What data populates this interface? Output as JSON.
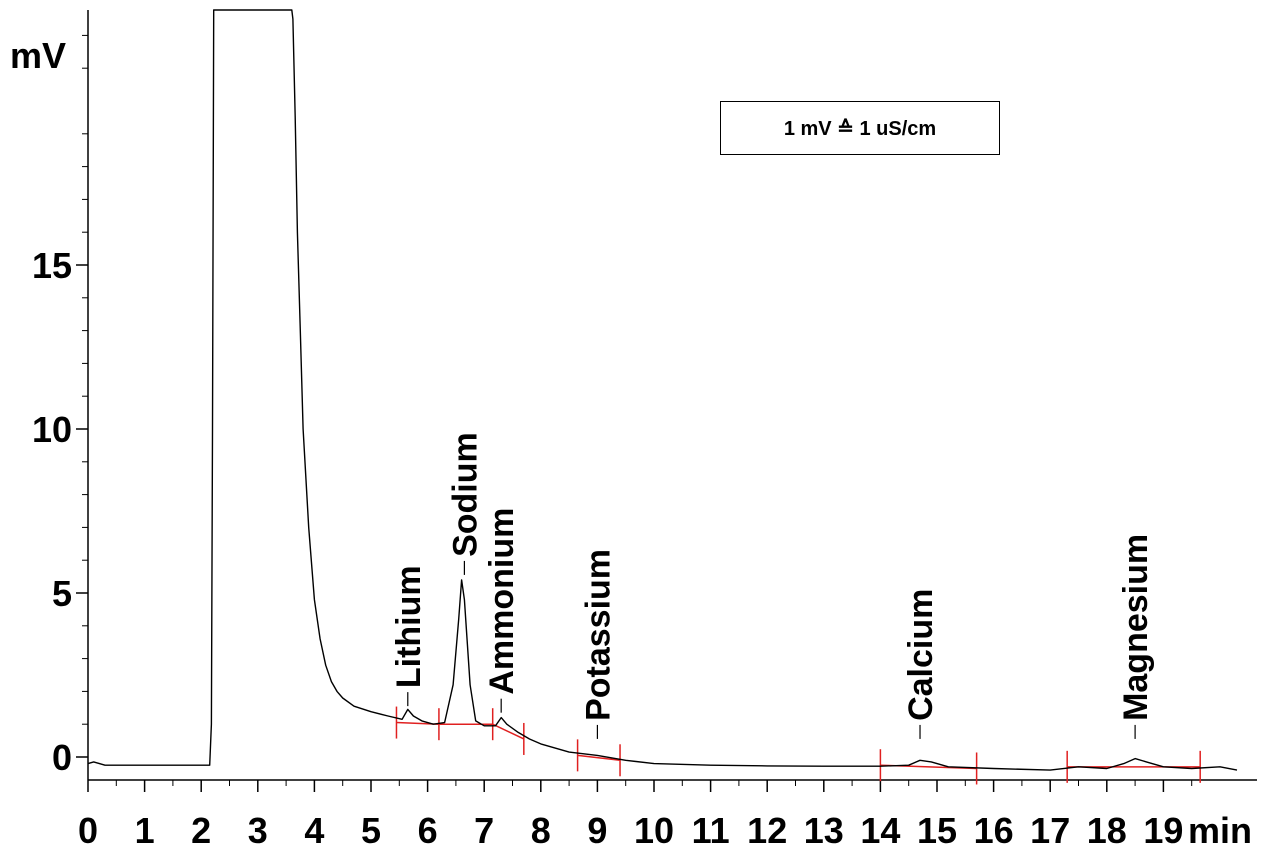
{
  "chart_data": {
    "type": "line",
    "ylabel": "mV",
    "xlabel": "min",
    "xlim": [
      0,
      20.5
    ],
    "ylim": [
      -0.8,
      23
    ],
    "x_ticks": [
      0,
      1,
      2,
      3,
      4,
      5,
      6,
      7,
      8,
      9,
      10,
      11,
      12,
      13,
      14,
      15,
      16,
      17,
      18,
      19
    ],
    "y_ticks": [
      0,
      5,
      10,
      15
    ],
    "annotation": "1 mV ≙ 1 uS/cm",
    "series": [
      {
        "color": "#000000",
        "x": [
          0,
          0.1,
          0.3,
          2.15,
          2.18,
          2.2,
          2.22,
          2.24,
          2.26,
          2.28,
          3.6,
          3.62,
          3.66,
          3.7,
          3.75,
          3.8,
          3.9,
          4.0,
          4.1,
          4.2,
          4.3,
          4.4,
          4.5,
          4.7,
          5.0,
          5.3,
          5.55,
          5.65,
          5.75,
          5.9,
          6.1,
          6.3,
          6.45,
          6.55,
          6.6,
          6.65,
          6.75,
          6.85,
          7.0,
          7.2,
          7.3,
          7.4,
          7.6,
          7.8,
          8.0,
          8.5,
          9.0,
          9.5,
          10.0,
          11.0,
          12.0,
          13.0,
          14.0,
          14.5,
          14.7,
          14.9,
          15.2,
          16.0,
          17.0,
          17.5,
          18.0,
          18.3,
          18.5,
          18.7,
          19.0,
          19.5,
          20.0,
          20.3
        ],
        "y": [
          -0.2,
          -0.15,
          -0.25,
          -0.25,
          1.0,
          10.0,
          23.0,
          23.0,
          23.0,
          23.0,
          23.0,
          22.5,
          19.5,
          16.0,
          13.0,
          10.0,
          7.0,
          4.8,
          3.6,
          2.8,
          2.3,
          2.0,
          1.8,
          1.55,
          1.38,
          1.25,
          1.15,
          1.45,
          1.25,
          1.1,
          1.0,
          1.05,
          2.2,
          4.2,
          5.4,
          4.8,
          2.2,
          1.1,
          0.95,
          0.95,
          1.2,
          1.0,
          0.75,
          0.55,
          0.4,
          0.15,
          0.05,
          -0.1,
          -0.2,
          -0.25,
          -0.27,
          -0.28,
          -0.28,
          -0.25,
          -0.1,
          -0.15,
          -0.3,
          -0.35,
          -0.4,
          -0.3,
          -0.35,
          -0.2,
          -0.05,
          -0.15,
          -0.3,
          -0.35,
          -0.3,
          -0.4
        ]
      }
    ],
    "peaks": [
      {
        "name": "Lithium",
        "x": 5.65,
        "label_bottom_y": 2.1
      },
      {
        "name": "Sodium",
        "x": 6.65,
        "label_bottom_y": 6.1
      },
      {
        "name": "Ammonium",
        "x": 7.3,
        "label_bottom_y": 1.9
      },
      {
        "name": "Potassium",
        "x": 9.0,
        "label_bottom_y": 1.1
      },
      {
        "name": "Calcium",
        "x": 14.7,
        "label_bottom_y": 1.1
      },
      {
        "name": "Magnesium",
        "x": 18.5,
        "label_bottom_y": 1.1
      }
    ],
    "baselines": [
      {
        "x": [
          5.45,
          6.2
        ],
        "y": [
          1.05,
          1.0
        ]
      },
      {
        "x": [
          6.2,
          7.15
        ],
        "y": [
          1.0,
          1.0
        ]
      },
      {
        "x": [
          7.15,
          7.7
        ],
        "y": [
          1.0,
          0.55
        ]
      },
      {
        "x": [
          8.65,
          9.4
        ],
        "y": [
          0.05,
          -0.1
        ]
      },
      {
        "x": [
          14.0,
          15.7
        ],
        "y": [
          -0.25,
          -0.35
        ]
      },
      {
        "x": [
          17.3,
          19.65
        ],
        "y": [
          -0.3,
          -0.3
        ]
      }
    ],
    "peak_markers": [
      5.45,
      6.2,
      7.15,
      7.7,
      8.65,
      9.4,
      14.0,
      15.7,
      17.3,
      19.65
    ]
  }
}
